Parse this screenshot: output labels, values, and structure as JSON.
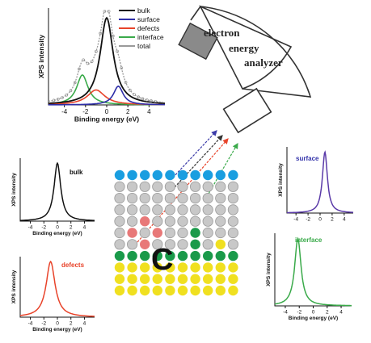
{
  "analyzer": {
    "label_lines": [
      "electron",
      "energy",
      "analyzer"
    ]
  },
  "sample_label": "C",
  "plots": {
    "main": {
      "xlabel": "Binding energy (eV)",
      "ylabel": "XPS intensity",
      "xticks": [
        "-4",
        "-2",
        "0",
        "2",
        "4"
      ],
      "legend": [
        {
          "label": "bulk",
          "color": "#111111"
        },
        {
          "label": "surface",
          "color": "#2e2ea8"
        },
        {
          "label": "defects",
          "color": "#e8432a"
        },
        {
          "label": "interface",
          "color": "#3aaa4a"
        },
        {
          "label": "total",
          "color": "#9a9a9a"
        }
      ]
    },
    "bulk": {
      "title": "bulk",
      "title_color": "#111111",
      "xlabel": "Binding energy (eV)",
      "ylabel": "XPS intensity",
      "xticks": [
        "-4",
        "-2",
        "0",
        "2",
        "4"
      ],
      "color": "#111111"
    },
    "defects": {
      "title": "defects",
      "title_color": "#e8432a",
      "xlabel": "Binding energy (eV)",
      "ylabel": "XPS intensity",
      "xticks": [
        "-4",
        "-2",
        "0",
        "2",
        "4"
      ],
      "color": "#e8432a"
    },
    "surface": {
      "title": "surface",
      "title_color": "#3333aa",
      "xlabel": "",
      "ylabel": "XPS intensity",
      "xticks": [
        "-4",
        "-2",
        "0",
        "2",
        "4"
      ],
      "color": "#5a3aa8"
    },
    "interface": {
      "title": "interface",
      "title_color": "#3aaa4a",
      "xlabel": "Binding energy (eV)",
      "ylabel": "XPS intensity",
      "xticks": [
        "-4",
        "-2",
        "0",
        "2",
        "4"
      ],
      "color": "#3aaa4a"
    }
  },
  "atom_colors": {
    "surface": "#1a9ee0",
    "bulk": "#c8c8c8",
    "defect": "#e87878",
    "interface": "#1a9a4a",
    "substrate": "#f0e020"
  },
  "lattice_rows": [
    [
      "surface",
      "surface",
      "surface",
      "surface",
      "surface",
      "surface",
      "surface",
      "surface",
      "surface",
      "surface"
    ],
    [
      "bulk",
      "bulk",
      "bulk",
      "bulk",
      "bulk",
      "bulk",
      "bulk",
      "bulk",
      "bulk",
      "bulk"
    ],
    [
      "bulk",
      "bulk",
      "bulk",
      "bulk",
      "bulk",
      "bulk",
      "bulk",
      "bulk",
      "bulk",
      "bulk"
    ],
    [
      "bulk",
      "bulk",
      "bulk",
      "bulk",
      "bulk",
      "bulk",
      "bulk",
      "bulk",
      "bulk",
      "bulk"
    ],
    [
      "bulk",
      "bulk",
      "defect",
      "bulk",
      "bulk",
      "bulk",
      "bulk",
      "bulk",
      "bulk",
      "bulk"
    ],
    [
      "bulk",
      "defect",
      "bulk",
      "defect",
      "bulk",
      "bulk",
      "interface",
      "bulk",
      "bulk",
      "bulk"
    ],
    [
      "bulk",
      "bulk",
      "defect",
      "bulk",
      "bulk",
      "bulk",
      "interface",
      "bulk",
      "substrate",
      "bulk"
    ],
    [
      "interface",
      "interface",
      "interface",
      "interface",
      "interface",
      "interface",
      "interface",
      "interface",
      "interface",
      "interface"
    ],
    [
      "substrate",
      "substrate",
      "substrate",
      "substrate",
      "substrate",
      "substrate",
      "substrate",
      "substrate",
      "substrate",
      "substrate"
    ],
    [
      "substrate",
      "substrate",
      "substrate",
      "substrate",
      "substrate",
      "substrate",
      "substrate",
      "substrate",
      "substrate",
      "substrate"
    ],
    [
      "substrate",
      "substrate",
      "substrate",
      "substrate",
      "substrate",
      "substrate",
      "substrate",
      "substrate",
      "substrate",
      "substrate"
    ]
  ],
  "beam_colors": [
    "#3a3aa8",
    "#333333",
    "#e8432a",
    "#3aaa4a"
  ]
}
